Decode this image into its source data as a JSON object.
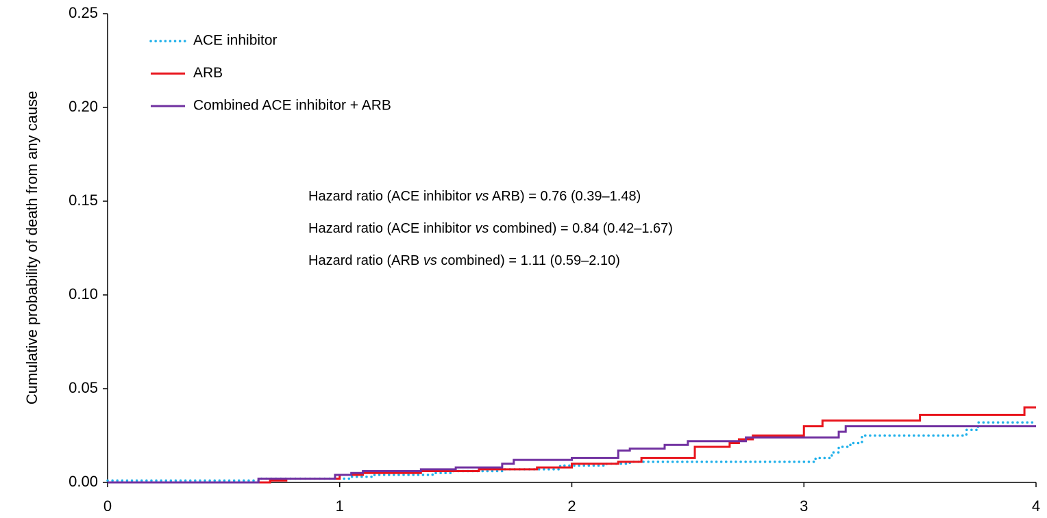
{
  "chart_data": {
    "type": "step",
    "y_label": "Cumulative probability of death from any cause",
    "xlim": [
      0,
      4
    ],
    "xticks": [
      0,
      1,
      2,
      3,
      4
    ],
    "ylim": [
      0,
      0.25
    ],
    "yticks": [
      {
        "value": 0,
        "label": "0.00"
      },
      0.05,
      {
        "value": 0.1,
        "label": "0.10"
      },
      0.15,
      {
        "value": 0.2,
        "label": "0.20"
      },
      0.25
    ],
    "legend": "upper left",
    "series": [
      {
        "name": "ACE inhibitor",
        "color": "#1fb0ea",
        "style": "dotted",
        "x": [
          0,
          0.65,
          1.05,
          1.15,
          1.4,
          1.48,
          1.7,
          1.95,
          2.15,
          2.25,
          3.05,
          3.12,
          3.15,
          3.2,
          3.25,
          3.7,
          3.75,
          4
        ],
        "values": [
          0.001,
          0.002,
          0.003,
          0.004,
          0.005,
          0.006,
          0.007,
          0.009,
          0.01,
          0.011,
          0.013,
          0.016,
          0.019,
          0.021,
          0.025,
          0.028,
          0.032,
          0.032
        ]
      },
      {
        "name": "ARB",
        "color": "#e8141c",
        "style": "solid",
        "x": [
          0,
          0.7,
          0.77,
          1.0,
          1.1,
          1.35,
          1.6,
          1.85,
          2.0,
          2.2,
          2.3,
          2.5,
          2.53,
          2.68,
          2.72,
          2.78,
          3.0,
          3.08,
          3.5,
          3.95,
          4
        ],
        "values": [
          0,
          0.001,
          0.002,
          0.004,
          0.005,
          0.006,
          0.007,
          0.008,
          0.01,
          0.011,
          0.013,
          0.013,
          0.019,
          0.021,
          0.023,
          0.025,
          0.03,
          0.033,
          0.036,
          0.04,
          0.04
        ]
      },
      {
        "name": "Combined ACE inhibitor + ARB",
        "color": "#7030a0",
        "style": "solid",
        "x": [
          0,
          0.65,
          0.98,
          1.05,
          1.1,
          1.35,
          1.5,
          1.7,
          1.75,
          2.0,
          2.2,
          2.25,
          2.4,
          2.5,
          2.75,
          3.15,
          3.18,
          4
        ],
        "values": [
          0,
          0.002,
          0.004,
          0.005,
          0.006,
          0.007,
          0.008,
          0.01,
          0.012,
          0.013,
          0.017,
          0.018,
          0.02,
          0.022,
          0.024,
          0.027,
          0.03,
          0.03
        ]
      }
    ],
    "annotations": [
      [
        "Hazard ratio (ACE inhibitor ",
        "vs",
        " ARB) = 0.76 (0.39–1.48)"
      ],
      [
        "Hazard ratio (ACE inhibitor ",
        "vs",
        " combined) = 0.84 (0.42–1.67)"
      ],
      [
        "Hazard ratio (ARB ",
        "vs",
        " combined) = 1.11 (0.59–2.10)"
      ]
    ]
  }
}
